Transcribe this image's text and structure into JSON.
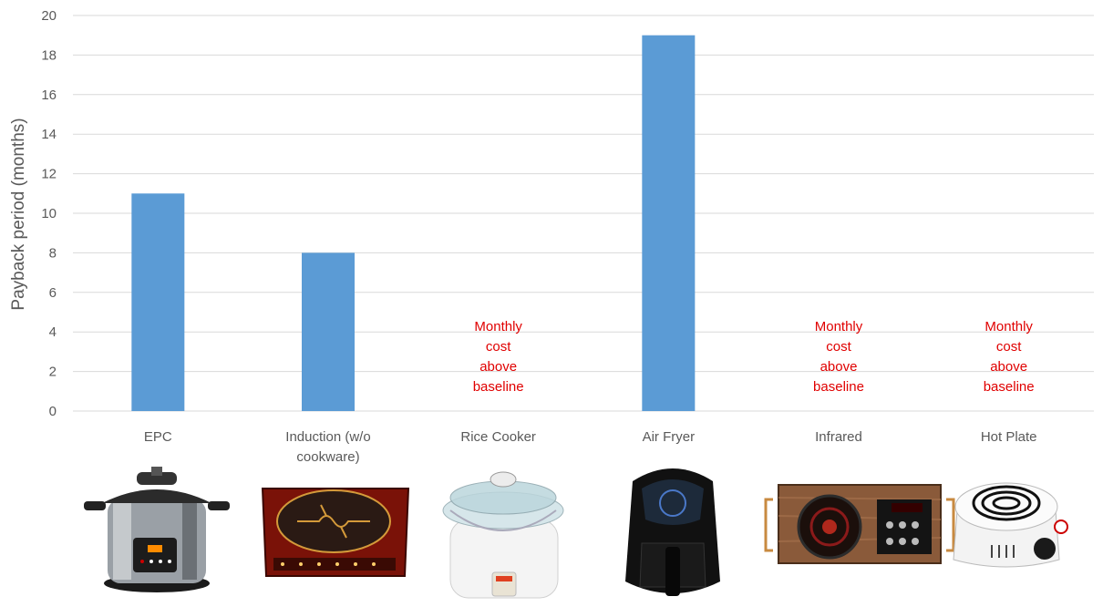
{
  "chart_data": {
    "type": "bar",
    "categories": [
      "EPC",
      "Induction (w/o cookware)",
      "Rice Cooker",
      "Air Fryer",
      "Infrared",
      "Hot Plate"
    ],
    "category_lines": [
      [
        "EPC"
      ],
      [
        "Induction (w/o",
        "cookware)"
      ],
      [
        "Rice Cooker"
      ],
      [
        "Air Fryer"
      ],
      [
        "Infrared"
      ],
      [
        "Hot Plate"
      ]
    ],
    "values": [
      11,
      8,
      null,
      19,
      null,
      null
    ],
    "annotations": [
      null,
      null,
      [
        "Monthly",
        "cost",
        "above",
        "baseline"
      ],
      null,
      [
        "Monthly",
        "cost",
        "above",
        "baseline"
      ],
      [
        "Monthly",
        "cost",
        "above",
        "baseline"
      ]
    ],
    "ylabel": "Payback period (months)",
    "xlabel": "",
    "title": "",
    "ylim": [
      0,
      20
    ],
    "yticks": [
      0,
      2,
      4,
      6,
      8,
      10,
      12,
      14,
      16,
      18,
      20
    ],
    "grid": true,
    "bar_color": "#5b9bd5",
    "annotation_color": "#e00000"
  },
  "appliance_images": [
    "electric-pressure-cooker-icon",
    "induction-cooktop-icon",
    "rice-cooker-icon",
    "air-fryer-icon",
    "infrared-cooktop-icon",
    "hot-plate-icon"
  ]
}
